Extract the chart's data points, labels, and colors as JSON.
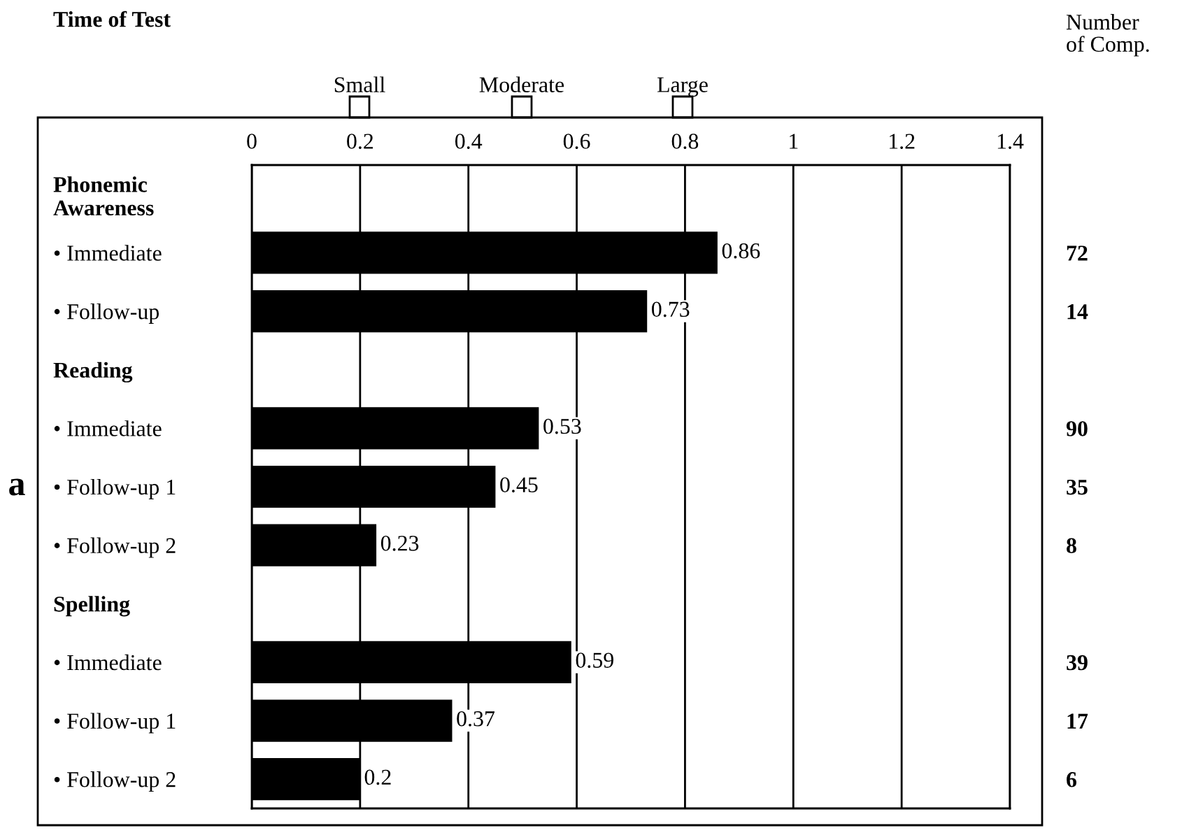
{
  "chart_data": {
    "type": "bar",
    "orientation": "horizontal",
    "title": "Time of Test",
    "categories": [
      "Phonemic\nAwareness",
      "• Immediate",
      "• Follow-up",
      "Reading",
      "• Immediate",
      "• Follow-up 1",
      "• Follow-up 2",
      "Spelling",
      "• Immediate",
      "• Follow-up 1",
      "• Follow-up 2"
    ],
    "values": [
      null,
      0.86,
      0.73,
      null,
      0.53,
      0.45,
      0.23,
      null,
      0.59,
      0.37,
      0.2
    ],
    "color": "#000000",
    "data_labels": true,
    "xlim": [
      0,
      1.4
    ],
    "xticks": [
      0,
      0.2,
      0.4,
      0.6,
      0.8,
      1,
      1.2,
      1.4
    ],
    "y2label": "Number\nof Comp.",
    "y2_categories": [
      null,
      "72",
      "14",
      null,
      "90",
      "35",
      "8",
      null,
      "39",
      "17",
      "6"
    ],
    "grid": "x",
    "annotations": [
      "a",
      "Small",
      "Moderate",
      "Large"
    ]
  }
}
